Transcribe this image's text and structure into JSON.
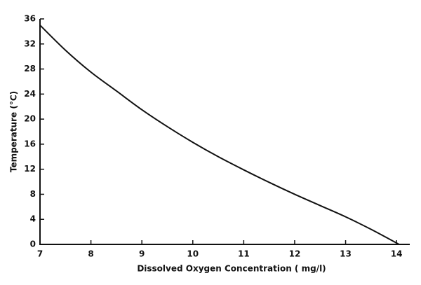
{
  "chart_data": {
    "type": "line",
    "x_label": "Dissolved Oxygen Concentration ( mg/l)",
    "y_label": "Temperature (°C)",
    "x": [
      7,
      7.5,
      8,
      8.5,
      9,
      9.5,
      10,
      10.5,
      11,
      11.5,
      12,
      12.5,
      13,
      13.5,
      14.05
    ],
    "series": [
      {
        "color": "#111111",
        "values": [
          35,
          31,
          27.5,
          24.5,
          21.5,
          18.8,
          16.3,
          14,
          11.9,
          9.9,
          8,
          6.2,
          4.4,
          2.4,
          0
        ]
      }
    ],
    "xlim": [
      7,
      14.26
    ],
    "ylim": [
      0,
      36
    ],
    "xticks": [
      7,
      8,
      9,
      10,
      11,
      12,
      13,
      14
    ],
    "yticks": [
      0,
      4,
      8,
      12,
      16,
      20,
      24,
      28,
      32,
      36
    ],
    "grid": false
  }
}
